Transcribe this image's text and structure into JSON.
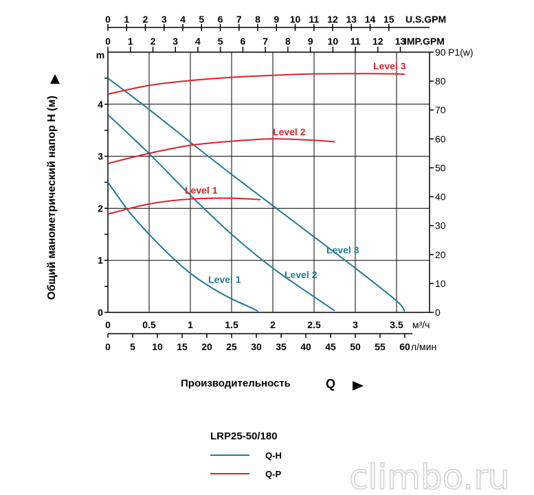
{
  "chart_data": {
    "type": "line",
    "title": "",
    "ylabel": "Общий манометрический напор H (м)",
    "ylabel_unit": "m",
    "xlabel": "Производительность",
    "xlabel_symbol": "Q",
    "y_left": {
      "unit": "m",
      "range": [
        0,
        5
      ],
      "ticks": [
        "0",
        "1",
        "2",
        "3",
        "4"
      ]
    },
    "y_right": {
      "unit": "P1(w)",
      "range": [
        0,
        90
      ],
      "ticks": [
        "0",
        "10",
        "20",
        "30",
        "40",
        "50",
        "60",
        "70",
        "80",
        "90"
      ]
    },
    "x_m3h": {
      "unit": "м³/ч",
      "range": [
        0,
        3.9
      ],
      "ticks": [
        "0",
        "0.5",
        "1",
        "1.5",
        "2",
        "2.5",
        "3",
        "3.5"
      ]
    },
    "x_lmin": {
      "unit": "л/мин",
      "ticks": [
        "0",
        "5",
        "10",
        "15",
        "20",
        "25",
        "30",
        "35",
        "40",
        "45",
        "50",
        "55",
        "60"
      ]
    },
    "x_usgpm": {
      "unit": "U.S.GPM",
      "ticks": [
        "0",
        "1",
        "2",
        "3",
        "4",
        "5",
        "6",
        "7",
        "8",
        "9",
        "10",
        "11",
        "12",
        "13",
        "14",
        "15"
      ]
    },
    "x_impgpm": {
      "unit": "IMP.GPM",
      "ticks": [
        "0",
        "1",
        "2",
        "3",
        "4",
        "5",
        "6",
        "7",
        "8",
        "9",
        "10",
        "11",
        "12",
        "13"
      ]
    },
    "series": [
      {
        "name": "Level 1",
        "kind": "Q-H",
        "axis": "m",
        "color": "#1f7a96",
        "x": [
          0,
          0.25,
          0.5,
          0.75,
          1.0,
          1.25,
          1.5,
          1.75,
          1.82
        ],
        "y": [
          2.5,
          1.95,
          1.5,
          1.1,
          0.75,
          0.48,
          0.26,
          0.08,
          0.02
        ]
      },
      {
        "name": "Level 2",
        "kind": "Q-H",
        "axis": "m",
        "color": "#1f7a96",
        "x": [
          0,
          0.5,
          1.0,
          1.5,
          2.0,
          2.5,
          2.75
        ],
        "y": [
          3.8,
          3.05,
          2.25,
          1.5,
          0.85,
          0.3,
          0.03
        ]
      },
      {
        "name": "Level 3",
        "kind": "Q-H",
        "axis": "m",
        "color": "#1f7a96",
        "x": [
          0,
          0.5,
          1.0,
          1.5,
          2.0,
          2.5,
          3.0,
          3.5,
          3.6
        ],
        "y": [
          4.5,
          3.9,
          3.27,
          2.65,
          2.05,
          1.45,
          0.85,
          0.22,
          0.02
        ]
      },
      {
        "name": "Level 1",
        "kind": "Q-P",
        "axis": "P1(w)",
        "color": "#d8232a",
        "x": [
          0,
          0.5,
          1.0,
          1.5,
          1.85
        ],
        "y": [
          34,
          37.5,
          39.2,
          39.5,
          39
        ]
      },
      {
        "name": "Level 2",
        "kind": "Q-P",
        "axis": "P1(w)",
        "color": "#d8232a",
        "x": [
          0,
          0.5,
          1.0,
          1.5,
          2.0,
          2.5,
          2.75
        ],
        "y": [
          51.5,
          55,
          57.8,
          59.2,
          60,
          59.5,
          59
        ]
      },
      {
        "name": "Level 3",
        "kind": "Q-P",
        "axis": "P1(w)",
        "color": "#d8232a",
        "x": [
          0,
          0.5,
          1.0,
          1.5,
          2.0,
          2.5,
          3.0,
          3.5,
          3.6
        ],
        "y": [
          75.5,
          78.5,
          80.2,
          81.3,
          82,
          82.5,
          82.6,
          82.5,
          82.3
        ]
      }
    ],
    "grid": true,
    "legend": {
      "title": "LRP25-50/180",
      "items": [
        {
          "label": "Q-H",
          "color": "#1f7a96"
        },
        {
          "label": "Q-P",
          "color": "#d8232a"
        }
      ],
      "placement": "bottom-center"
    }
  },
  "watermark": "climbo.ru"
}
